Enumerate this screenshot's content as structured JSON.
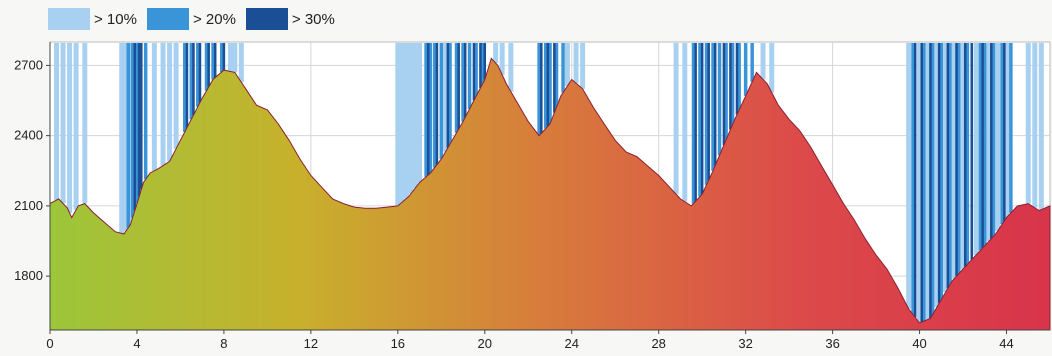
{
  "chart_data": {
    "type": "area",
    "title": "",
    "xlabel": "",
    "ylabel": "",
    "xlim": [
      0,
      46
    ],
    "ylim": [
      1570,
      2800
    ],
    "x_ticks": [
      0,
      4,
      8,
      12,
      16,
      20,
      24,
      28,
      32,
      36,
      40,
      44
    ],
    "y_ticks": [
      1800,
      2100,
      2400,
      2700
    ],
    "grid": true,
    "legend": {
      "placement": "top-left",
      "entries": [
        {
          "label": "> 10%",
          "color": "#a8d0f0"
        },
        {
          "label": "> 20%",
          "color": "#3a94d8"
        },
        {
          "label": "> 30%",
          "color": "#1a4f96"
        }
      ]
    },
    "gradient_colors": [
      "#9cc63a",
      "#c8b02c",
      "#d87a3c",
      "#dc4a4a",
      "#d8344a"
    ],
    "profile": {
      "x": [
        0,
        0.4,
        0.8,
        1.0,
        1.3,
        1.6,
        2.0,
        2.5,
        3.0,
        3.4,
        3.7,
        4.0,
        4.3,
        4.6,
        5.0,
        5.5,
        6.0,
        6.5,
        7.0,
        7.5,
        8.0,
        8.5,
        9.0,
        9.5,
        10.0,
        10.5,
        11.0,
        11.5,
        12.0,
        12.5,
        13.0,
        13.5,
        14.0,
        14.5,
        15.0,
        15.5,
        16.0,
        16.5,
        17.0,
        17.5,
        18.0,
        18.5,
        19.0,
        19.5,
        20.0,
        20.3,
        20.6,
        21.0,
        21.5,
        22.0,
        22.5,
        23.0,
        23.5,
        24.0,
        24.5,
        25.0,
        25.5,
        26.0,
        26.5,
        27.0,
        27.5,
        28.0,
        28.5,
        29.0,
        29.5,
        30.0,
        30.5,
        31.0,
        31.5,
        32.0,
        32.5,
        33.0,
        33.5,
        34.0,
        34.5,
        35.0,
        35.5,
        36.0,
        36.5,
        37.0,
        37.5,
        38.0,
        38.5,
        39.0,
        39.5,
        40.0,
        40.5,
        41.0,
        41.5,
        42.0,
        42.5,
        43.0,
        43.5,
        44.0,
        44.5,
        45.0,
        45.5,
        46.0
      ],
      "y": [
        2110,
        2130,
        2090,
        2050,
        2100,
        2110,
        2070,
        2030,
        1990,
        1980,
        2020,
        2110,
        2200,
        2240,
        2260,
        2290,
        2380,
        2470,
        2560,
        2640,
        2680,
        2670,
        2600,
        2530,
        2510,
        2450,
        2380,
        2300,
        2230,
        2180,
        2130,
        2110,
        2095,
        2090,
        2090,
        2095,
        2100,
        2140,
        2200,
        2240,
        2300,
        2380,
        2460,
        2550,
        2640,
        2730,
        2700,
        2620,
        2540,
        2460,
        2400,
        2450,
        2570,
        2640,
        2600,
        2520,
        2450,
        2380,
        2330,
        2310,
        2270,
        2230,
        2180,
        2130,
        2100,
        2150,
        2250,
        2360,
        2470,
        2570,
        2670,
        2620,
        2530,
        2470,
        2420,
        2350,
        2270,
        2190,
        2110,
        2040,
        1960,
        1890,
        1830,
        1750,
        1660,
        1600,
        1620,
        1700,
        1780,
        1830,
        1880,
        1930,
        1980,
        2050,
        2100,
        2110,
        2080,
        2100
      ]
    },
    "gradient_bands": {
      "x10": [
        0.3,
        0.6,
        0.9,
        1.2,
        1.6,
        3.3,
        3.5,
        3.7,
        4.8,
        5.2,
        5.5,
        5.8,
        8.3,
        8.5,
        8.8,
        16.0,
        16.2,
        16.4,
        16.6,
        16.8,
        17.0,
        18.2,
        20.5,
        20.8,
        21.2,
        23.8,
        24.2,
        24.5,
        28.8,
        29.2,
        32.8,
        33.2,
        39.5,
        40.0,
        40.4,
        40.8,
        41.2,
        41.6,
        42.0,
        42.6,
        43.2,
        43.6,
        44.0,
        45.0,
        45.3,
        45.6
      ],
      "x20": [
        3.6,
        3.8,
        4.0,
        4.4,
        6.2,
        6.5,
        6.8,
        7.2,
        7.5,
        7.9,
        17.3,
        17.5,
        17.7,
        18.0,
        18.4,
        18.7,
        19.0,
        19.3,
        19.6,
        19.9,
        22.5,
        22.8,
        23.0,
        23.3,
        23.6,
        29.6,
        29.9,
        30.2,
        30.5,
        30.8,
        31.1,
        31.4,
        31.7,
        32.0,
        32.3,
        39.7,
        40.2,
        40.6,
        41.0,
        41.4,
        41.8,
        42.2,
        42.8,
        43.0,
        43.4,
        43.8,
        44.2
      ],
      "x30": [
        3.9,
        4.1,
        4.2,
        6.3,
        6.6,
        6.9,
        7.3,
        7.6,
        8.0,
        17.4,
        17.8,
        18.3,
        18.8,
        19.1,
        19.5,
        19.8,
        20.0,
        22.6,
        22.9,
        23.2,
        29.7,
        30.0,
        30.3,
        30.6,
        31.0,
        31.3,
        31.6,
        39.8,
        40.1,
        40.5,
        40.9,
        41.3,
        41.7,
        42.1,
        42.4,
        42.9,
        43.3,
        43.9
      ]
    }
  }
}
